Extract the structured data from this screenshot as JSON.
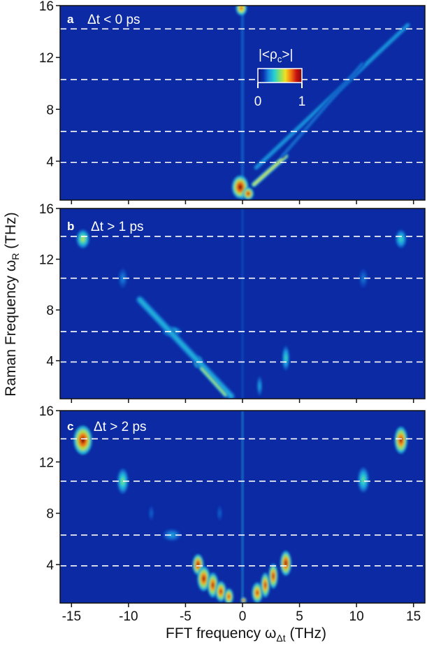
{
  "chart_data": {
    "type": "heatmap",
    "xlabel": "FFT frequency ω",
    "xlabel_sub": "Δt",
    "xlabel_unit": " (THz)",
    "ylabel": "Raman Frequency ω",
    "ylabel_sub": "R",
    "ylabel_unit": " (THz)",
    "xlim": [
      -16,
      16
    ],
    "ylim": [
      1,
      16
    ],
    "x_ticks": [
      -15,
      -10,
      -5,
      0,
      5,
      10,
      15
    ],
    "y_ticks": [
      4,
      8,
      12,
      16
    ],
    "colorbar": {
      "label": "|<ρ",
      "label_sub": "c",
      "label_end": ">|",
      "min_label": "0",
      "max_label": "1",
      "range": [
        0,
        1
      ],
      "colormap": "jet",
      "colors": [
        "#0d1670",
        "#0a2fb0",
        "#1a8fe0",
        "#26d0d0",
        "#86e06a",
        "#f0e020",
        "#f47a10",
        "#c81212",
        "#7a0808"
      ]
    },
    "background_value": 0.1,
    "reference_lines_y": [
      3.9,
      6.3,
      10.3,
      14.2
    ],
    "reference_lines_y_lower": [
      3.9,
      6.3,
      10.5,
      13.8
    ],
    "panels": [
      {
        "letter": "a",
        "condition": "Δt < 0 ps",
        "show_colorbar": true,
        "features": [
          {
            "kind": "vline",
            "x": 0,
            "y0": 1,
            "y1": 16,
            "width": 0.25,
            "value": 0.22
          },
          {
            "kind": "blob",
            "x": -0.1,
            "y": 15.8,
            "sx": 0.3,
            "sy": 0.35,
            "value": 0.8
          },
          {
            "kind": "blob",
            "x": -0.2,
            "y": 2.0,
            "sx": 0.45,
            "sy": 0.55,
            "value": 0.98
          },
          {
            "kind": "blob",
            "x": 0.5,
            "y": 1.5,
            "sx": 0.3,
            "sy": 0.3,
            "value": 0.9
          },
          {
            "kind": "streak",
            "x0": 1.0,
            "y0": 2.2,
            "x1": 3.8,
            "y1": 4.4,
            "width": 0.3,
            "value": 0.6
          },
          {
            "kind": "streak",
            "x0": 1.2,
            "y0": 3.5,
            "x1": 14.5,
            "y1": 14.5,
            "width": 0.3,
            "value": 0.28
          },
          {
            "kind": "streak",
            "x0": 3.5,
            "y0": 4.4,
            "x1": 10.5,
            "y1": 11.5,
            "width": 0.25,
            "value": 0.22
          }
        ]
      },
      {
        "letter": "b",
        "condition": "Δt > 1 ps",
        "show_colorbar": false,
        "features": [
          {
            "kind": "vline",
            "x": 0,
            "y0": 1,
            "y1": 16,
            "width": 0.2,
            "value": 0.18
          },
          {
            "kind": "blob",
            "x": -14.0,
            "y": 13.6,
            "sx": 0.35,
            "sy": 0.45,
            "value": 0.55
          },
          {
            "kind": "blob",
            "x": 13.9,
            "y": 13.6,
            "sx": 0.3,
            "sy": 0.45,
            "value": 0.4
          },
          {
            "kind": "blob",
            "x": -10.5,
            "y": 10.5,
            "sx": 0.25,
            "sy": 0.5,
            "value": 0.24
          },
          {
            "kind": "blob",
            "x": 10.6,
            "y": 10.5,
            "sx": 0.25,
            "sy": 0.5,
            "value": 0.22
          },
          {
            "kind": "blob",
            "x": -6.2,
            "y": 6.3,
            "sx": 0.5,
            "sy": 0.25,
            "value": 0.42
          },
          {
            "kind": "blob",
            "x": -3.9,
            "y": 3.9,
            "sx": 0.25,
            "sy": 0.3,
            "value": 0.65
          },
          {
            "kind": "streak",
            "x0": -9.0,
            "y0": 8.8,
            "x1": -1.0,
            "y1": 1.2,
            "width": 0.45,
            "value": 0.32
          },
          {
            "kind": "streak",
            "x0": -3.6,
            "y0": 3.4,
            "x1": -1.5,
            "y1": 1.3,
            "width": 0.25,
            "value": 0.55
          },
          {
            "kind": "blob",
            "x": 3.8,
            "y": 4.2,
            "sx": 0.2,
            "sy": 0.6,
            "value": 0.4
          },
          {
            "kind": "blob",
            "x": 1.5,
            "y": 2.0,
            "sx": 0.15,
            "sy": 0.5,
            "value": 0.3
          }
        ]
      },
      {
        "letter": "c",
        "condition": "Δt > 2 ps",
        "show_colorbar": false,
        "features": [
          {
            "kind": "vline",
            "x": 0,
            "y0": 1,
            "y1": 16,
            "width": 0.15,
            "value": 0.3
          },
          {
            "kind": "blob",
            "x": -14.0,
            "y": 13.7,
            "sx": 0.5,
            "sy": 0.7,
            "value": 0.97
          },
          {
            "kind": "blob",
            "x": 13.9,
            "y": 13.7,
            "sx": 0.35,
            "sy": 0.65,
            "value": 0.92
          },
          {
            "kind": "blob",
            "x": -10.5,
            "y": 10.5,
            "sx": 0.3,
            "sy": 0.6,
            "value": 0.48
          },
          {
            "kind": "blob",
            "x": 10.6,
            "y": 10.6,
            "sx": 0.3,
            "sy": 0.6,
            "value": 0.45
          },
          {
            "kind": "blob",
            "x": -6.2,
            "y": 6.3,
            "sx": 0.5,
            "sy": 0.3,
            "value": 0.28
          },
          {
            "kind": "blob",
            "x": -3.9,
            "y": 4.0,
            "sx": 0.3,
            "sy": 0.5,
            "value": 0.95
          },
          {
            "kind": "blob",
            "x": -3.4,
            "y": 2.9,
            "sx": 0.35,
            "sy": 0.6,
            "value": 0.92
          },
          {
            "kind": "blob",
            "x": -2.6,
            "y": 2.4,
            "sx": 0.3,
            "sy": 0.6,
            "value": 0.9
          },
          {
            "kind": "blob",
            "x": -1.9,
            "y": 1.9,
            "sx": 0.3,
            "sy": 0.5,
            "value": 0.88
          },
          {
            "kind": "blob",
            "x": -1.2,
            "y": 1.5,
            "sx": 0.25,
            "sy": 0.4,
            "value": 0.85
          },
          {
            "kind": "blob",
            "x": 1.3,
            "y": 1.8,
            "sx": 0.3,
            "sy": 0.5,
            "value": 0.85
          },
          {
            "kind": "blob",
            "x": 2.0,
            "y": 2.4,
            "sx": 0.25,
            "sy": 0.6,
            "value": 0.88
          },
          {
            "kind": "blob",
            "x": 2.7,
            "y": 3.1,
            "sx": 0.25,
            "sy": 0.6,
            "value": 0.9
          },
          {
            "kind": "blob",
            "x": 3.8,
            "y": 4.1,
            "sx": 0.3,
            "sy": 0.6,
            "value": 0.95
          },
          {
            "kind": "blob",
            "x": 0.1,
            "y": 1.2,
            "sx": 0.15,
            "sy": 0.15,
            "value": 0.9
          },
          {
            "kind": "blob",
            "x": -2.0,
            "y": 8.0,
            "sx": 0.15,
            "sy": 0.4,
            "value": 0.2
          },
          {
            "kind": "blob",
            "x": -8.0,
            "y": 8.0,
            "sx": 0.15,
            "sy": 0.4,
            "value": 0.2
          }
        ]
      }
    ]
  }
}
